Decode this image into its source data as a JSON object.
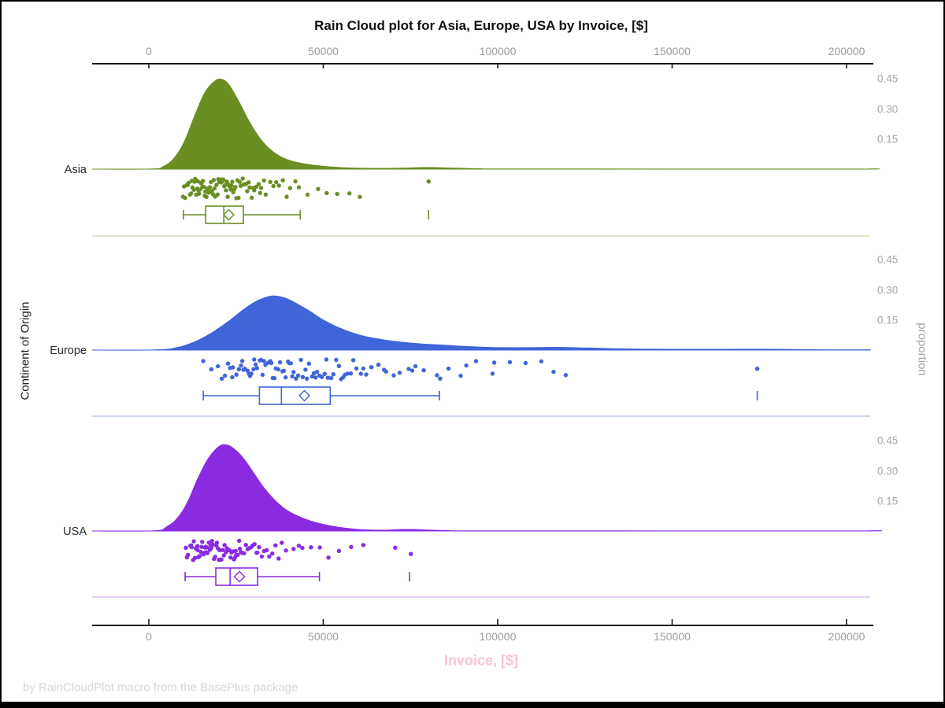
{
  "chart_data": {
    "type": "raincloud (half-violin density + jittered scatter + boxplot)",
    "title": "Rain Cloud plot for Asia, Europe, USA by Invoice, [$]",
    "xlabel": "Invoice, [$]",
    "ylabel": "Continent of Origin",
    "y2label": "proportion",
    "attribution": "by RainCloudPlot macro from the BasePlus package",
    "xlim": [
      0,
      200000
    ],
    "x_ticks": [
      0,
      50000,
      100000,
      150000,
      200000
    ],
    "x_tick_labels": [
      "0",
      "50000",
      "100000",
      "150000",
      "200000"
    ],
    "proportion_ticks": [
      0.45,
      0.3,
      0.15
    ],
    "proportion_tick_labels": [
      "0.45",
      "0.30",
      "0.15"
    ],
    "grid": false,
    "legend": "none",
    "colors": {
      "asia": "#6b8e23",
      "europe": "#3f65d9",
      "usa": "#8a2be2",
      "asia_separator": "#d6ddb9",
      "europe_separator": "#bccbed",
      "usa_separator": "#ddc0ef",
      "axis_line": "#1a1a1a",
      "tick_label": "#9c9c9c",
      "xlabel_pink": "#f9c2d1",
      "footer_gray": "#d5d5d5"
    },
    "series": [
      {
        "name": "Asia",
        "color": "#6b8e23",
        "separator_color": "#d6ddb9",
        "density": [
          [
            1000,
            0.001
          ],
          [
            4000,
            0.012
          ],
          [
            7000,
            0.05
          ],
          [
            10000,
            0.13
          ],
          [
            13000,
            0.26
          ],
          [
            16000,
            0.38
          ],
          [
            19000,
            0.44
          ],
          [
            21000,
            0.447
          ],
          [
            23000,
            0.42
          ],
          [
            26000,
            0.33
          ],
          [
            29000,
            0.23
          ],
          [
            32000,
            0.15
          ],
          [
            35000,
            0.095
          ],
          [
            38000,
            0.06
          ],
          [
            41000,
            0.04
          ],
          [
            45000,
            0.025
          ],
          [
            50000,
            0.014
          ],
          [
            55000,
            0.008
          ],
          [
            60000,
            0.005
          ],
          [
            66000,
            0.004
          ],
          [
            72000,
            0.005
          ],
          [
            78000,
            0.008
          ],
          [
            82000,
            0.008
          ],
          [
            88000,
            0.005
          ],
          [
            95000,
            0.002
          ],
          [
            105000,
            0.001
          ],
          [
            200000,
            0.0005
          ]
        ],
        "box": {
          "whisker_low": 9900,
          "q1": 16300,
          "median": 21500,
          "q3": 27100,
          "whisker_high": 43400,
          "mean": 22900,
          "outliers": [
            80200
          ]
        },
        "points": [
          9800,
          21400,
          14700,
          26300,
          12500,
          18100,
          23900,
          10900,
          16800,
          29500,
          13600,
          20200,
          25100,
          11800,
          17500,
          22600,
          15300,
          28200,
          19400,
          12100,
          24500,
          16200,
          30800,
          14000,
          21900,
          18800,
          26900,
          13100,
          23200,
          10400,
          17100,
          27600,
          15800,
          20700,
          12900,
          25700,
          19000,
          32200,
          14400,
          22100,
          16500,
          28900,
          11400,
          24200,
          18400,
          31500,
          13900,
          21100,
          15500,
          27100,
          12300,
          19700,
          23500,
          10100,
          16000,
          29900,
          14900,
          22900,
          17800,
          26000,
          20400,
          33500,
          13300,
          25400,
          18600,
          30200,
          15100,
          21600,
          11100,
          23700,
          16900,
          34800,
          19900,
          28600,
          14200,
          22400,
          17300,
          36500,
          20900,
          31900,
          24800,
          38400,
          27900,
          33000,
          35700,
          40500,
          37300,
          43000,
          39500,
          45500,
          42000,
          48500,
          51000,
          54000,
          57500,
          60500,
          80200
        ]
      },
      {
        "name": "Europe",
        "color": "#3f65d9",
        "separator_color": "#bccbed",
        "density": [
          [
            2000,
            0.001
          ],
          [
            8000,
            0.012
          ],
          [
            13000,
            0.04
          ],
          [
            18000,
            0.085
          ],
          [
            23000,
            0.145
          ],
          [
            27000,
            0.2
          ],
          [
            31000,
            0.245
          ],
          [
            34000,
            0.265
          ],
          [
            36000,
            0.27
          ],
          [
            39000,
            0.26
          ],
          [
            42000,
            0.235
          ],
          [
            46000,
            0.195
          ],
          [
            50000,
            0.15
          ],
          [
            54000,
            0.115
          ],
          [
            58000,
            0.088
          ],
          [
            62000,
            0.068
          ],
          [
            67000,
            0.052
          ],
          [
            72000,
            0.04
          ],
          [
            78000,
            0.031
          ],
          [
            84000,
            0.025
          ],
          [
            90000,
            0.019
          ],
          [
            96000,
            0.014
          ],
          [
            102000,
            0.012
          ],
          [
            108000,
            0.012
          ],
          [
            114000,
            0.0135
          ],
          [
            120000,
            0.013
          ],
          [
            126000,
            0.01
          ],
          [
            133000,
            0.007
          ],
          [
            141000,
            0.005
          ],
          [
            150000,
            0.004
          ],
          [
            160000,
            0.004
          ],
          [
            170000,
            0.0045
          ],
          [
            180000,
            0.004
          ],
          [
            190000,
            0.002
          ],
          [
            200000,
            0.001
          ]
        ],
        "box": {
          "whisker_low": 15600,
          "q1": 31700,
          "median": 38000,
          "q3": 52000,
          "whisker_high": 83300,
          "mean": 44600,
          "outliers": [
            174400
          ]
        },
        "points": [
          15600,
          34200,
          25800,
          44100,
          19800,
          38700,
          29400,
          52300,
          22700,
          41500,
          31800,
          58600,
          17900,
          36400,
          27500,
          47800,
          24100,
          55100,
          33400,
          62300,
          20900,
          39900,
          30200,
          50400,
          26400,
          45900,
          35500,
          65800,
          23300,
          42800,
          32600,
          53700,
          28300,
          48900,
          37600,
          70200,
          21800,
          40700,
          31000,
          56200,
          25100,
          46800,
          34800,
          60800,
          29000,
          51300,
          38300,
          74500,
          23900,
          43600,
          33000,
          57900,
          27100,
          49600,
          36000,
          67400,
          30600,
          54500,
          39200,
          78800,
          26800,
          44900,
          35100,
          59500,
          28700,
          52900,
          37100,
          71900,
          32200,
          56900,
          41100,
          82600,
          30000,
          48200,
          40200,
          63800,
          42200,
          76400,
          45300,
          85900,
          47300,
          89400,
          50900,
          93800,
          55700,
          98500,
          61500,
          103500,
          68000,
          108000,
          75500,
          112500,
          83500,
          116000,
          91000,
          119500,
          99000,
          174400
        ]
      },
      {
        "name": "USA",
        "color": "#8a2be2",
        "separator_color": "#ddc0ef",
        "density": [
          [
            1500,
            0.001
          ],
          [
            5000,
            0.02
          ],
          [
            8000,
            0.06
          ],
          [
            11000,
            0.14
          ],
          [
            14000,
            0.26
          ],
          [
            17000,
            0.36
          ],
          [
            20000,
            0.42
          ],
          [
            22000,
            0.43
          ],
          [
            24000,
            0.415
          ],
          [
            27000,
            0.365
          ],
          [
            30000,
            0.29
          ],
          [
            33000,
            0.215
          ],
          [
            36000,
            0.155
          ],
          [
            39000,
            0.11
          ],
          [
            42000,
            0.08
          ],
          [
            46000,
            0.052
          ],
          [
            50000,
            0.033
          ],
          [
            54000,
            0.02
          ],
          [
            58000,
            0.011
          ],
          [
            62000,
            0.006
          ],
          [
            67000,
            0.004
          ],
          [
            72000,
            0.0075
          ],
          [
            76000,
            0.008
          ],
          [
            80000,
            0.005
          ],
          [
            86000,
            0.002
          ],
          [
            95000,
            0.001
          ],
          [
            200000,
            0.0005
          ]
        ],
        "box": {
          "whisker_low": 10400,
          "q1": 19200,
          "median": 23300,
          "q3": 31200,
          "whisker_high": 48900,
          "mean": 26000,
          "outliers": [
            74700
          ]
        },
        "points": [
          10600,
          23400,
          16800,
          29700,
          13200,
          20500,
          26100,
          11900,
          18300,
          32400,
          14600,
          22100,
          27800,
          12700,
          19500,
          24700,
          16100,
          30900,
          21200,
          13900,
          25500,
          17500,
          33800,
          15300,
          22800,
          19000,
          28700,
          14200,
          24100,
          11200,
          17900,
          31600,
          16500,
          21700,
          13500,
          26700,
          19800,
          35400,
          15700,
          23100,
          17200,
          29200,
          12300,
          25000,
          18700,
          33000,
          14900,
          21500,
          16300,
          27300,
          12900,
          20100,
          24400,
          10900,
          16600,
          30300,
          15100,
          23700,
          18100,
          26400,
          20800,
          37200,
          14000,
          25900,
          19300,
          31100,
          15900,
          22400,
          12100,
          24900,
          17700,
          39300,
          20300,
          28300,
          34500,
          41500,
          36300,
          44000,
          38100,
          46500,
          43000,
          49000,
          51500,
          54500,
          58000,
          61500,
          70600,
          75100
        ]
      }
    ]
  }
}
